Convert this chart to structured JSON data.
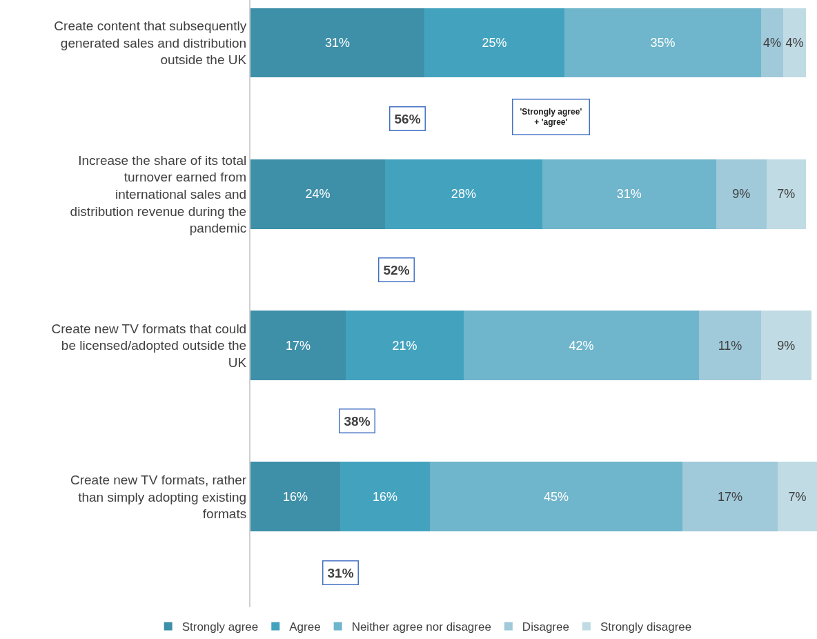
{
  "chart_data": {
    "type": "bar",
    "orientation": "horizontal",
    "stacked": true,
    "categories": [
      "Create content that subsequently generated sales and distribution outside the UK",
      "Increase the share of its total turnover earned from international sales and distribution revenue during the pandemic",
      "Create new TV formats that could be licensed/adopted outside the UK",
      "Create new TV formats, rather than simply adopting existing formats"
    ],
    "series": [
      {
        "name": "Strongly agree",
        "color": "#3e8fa8",
        "values": [
          31,
          24,
          17,
          16
        ],
        "value_labels": [
          "31%",
          "24%",
          "17%",
          "16%"
        ]
      },
      {
        "name": "Agree",
        "color": "#43a3bf",
        "values": [
          25,
          28,
          21,
          16
        ],
        "value_labels": [
          "25%",
          "28%",
          "21%",
          "16%"
        ]
      },
      {
        "name": "Neither agree nor disagree",
        "color": "#6fb5cb",
        "values": [
          35,
          31,
          42,
          45
        ],
        "value_labels": [
          "35%",
          "31%",
          "42%",
          "45%"
        ]
      },
      {
        "name": "Disagree",
        "color": "#a0c9da",
        "values": [
          4,
          9,
          11,
          17
        ],
        "value_labels": [
          "4%",
          "9%",
          "11%",
          "17%"
        ]
      },
      {
        "name": "Strongly disagree",
        "color": "#c0dbe4",
        "values": [
          4,
          7,
          9,
          7
        ],
        "value_labels": [
          "4%",
          "7%",
          "9%",
          "7%"
        ]
      }
    ],
    "xlim": [
      0,
      101
    ],
    "tick_labels": "y",
    "legend": "bottom",
    "annotations": [
      "56%",
      "52%",
      "38%",
      "31%",
      "'Strongly agree'\n+ 'agree'"
    ]
  }
}
